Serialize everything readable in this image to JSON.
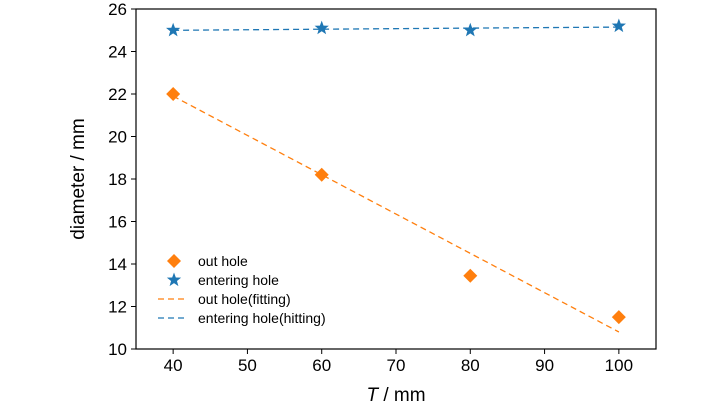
{
  "chart_data": {
    "type": "scatter",
    "xlabel_italic": "T",
    "xlabel_unit": " / mm",
    "ylabel": "diameter / mm",
    "xlim": [
      35,
      105
    ],
    "ylim": [
      10,
      26
    ],
    "xticks": [
      40,
      50,
      60,
      70,
      80,
      90,
      100
    ],
    "yticks": [
      10,
      12,
      14,
      16,
      18,
      20,
      22,
      24,
      26
    ],
    "grid": false,
    "legend_position": "bottom-left",
    "series": [
      {
        "name": "out hole",
        "kind": "scatter",
        "marker": "diamond",
        "color": "#ff7f0e",
        "x": [
          40,
          60,
          80,
          100
        ],
        "y": [
          22.0,
          18.2,
          13.45,
          11.5
        ]
      },
      {
        "name": "entering hole",
        "kind": "scatter",
        "marker": "star",
        "color": "#1f77b4",
        "x": [
          40,
          60,
          80,
          100
        ],
        "y": [
          25.0,
          25.1,
          25.0,
          25.2
        ]
      },
      {
        "name": "out hole(fitting)",
        "kind": "line",
        "dash": "dashed",
        "color": "#ff7f0e",
        "x": [
          40,
          100
        ],
        "y": [
          21.9,
          10.8
        ]
      },
      {
        "name": "entering hole(hitting)",
        "kind": "line",
        "dash": "dashed",
        "color": "#1f77b4",
        "x": [
          40,
          60,
          80,
          100
        ],
        "y": [
          25.0,
          25.05,
          25.1,
          25.15
        ]
      }
    ]
  }
}
